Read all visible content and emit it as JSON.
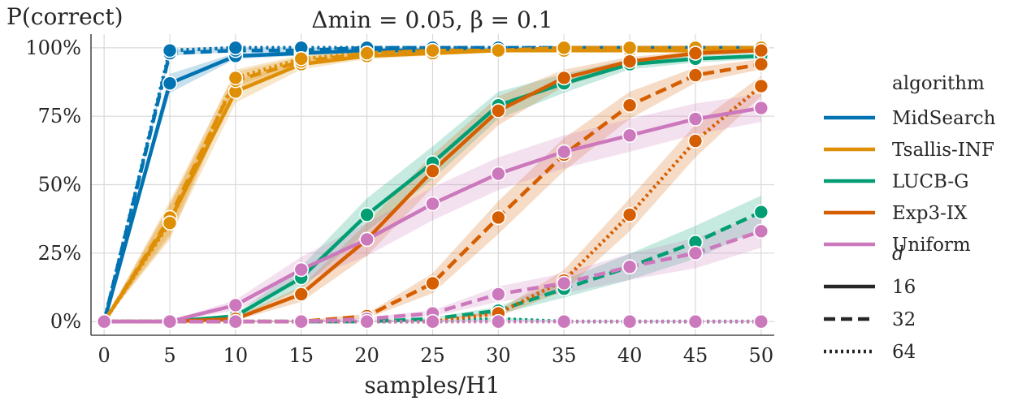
{
  "chart_data": {
    "type": "line",
    "title": "Δmin = 0.05, β = 0.1",
    "xlabel": "samples/H1",
    "ylabel": "P(correct)",
    "xlim": [
      -1,
      51
    ],
    "ylim": [
      -0.05,
      1.05
    ],
    "x": [
      0,
      5,
      10,
      15,
      20,
      25,
      30,
      35,
      40,
      45,
      50
    ],
    "x_ticks": [
      "0",
      "5",
      "10",
      "15",
      "20",
      "25",
      "30",
      "35",
      "40",
      "45",
      "50"
    ],
    "y_ticks": [
      "0%",
      "25%",
      "50%",
      "75%",
      "100%"
    ],
    "grid": true,
    "legend_position": "right",
    "legend_title_algorithm": "algorithm",
    "legend_title_d": "d",
    "algorithms": [
      {
        "name": "MidSearch",
        "color": "#0173b2"
      },
      {
        "name": "Tsallis-INF",
        "color": "#de8f05"
      },
      {
        "name": "LUCB-G",
        "color": "#029e73"
      },
      {
        "name": "Exp3-IX",
        "color": "#d55e00"
      },
      {
        "name": "Uniform",
        "color": "#cc78bc"
      }
    ],
    "d_values": [
      {
        "label": "16",
        "dash": "solid"
      },
      {
        "label": "32",
        "dash": "dashed"
      },
      {
        "label": "64",
        "dash": "dotted"
      }
    ],
    "series": [
      {
        "algorithm": "MidSearch",
        "d": "16",
        "values": [
          0,
          0.87,
          0.97,
          0.98,
          0.99,
          0.99,
          0.99,
          1.0,
          1.0,
          1.0,
          1.0
        ]
      },
      {
        "algorithm": "MidSearch",
        "d": "32",
        "values": [
          0,
          0.98,
          0.99,
          0.99,
          1.0,
          1.0,
          1.0,
          1.0,
          1.0,
          1.0,
          1.0
        ]
      },
      {
        "algorithm": "MidSearch",
        "d": "64",
        "values": [
          0,
          0.99,
          1.0,
          1.0,
          1.0,
          1.0,
          1.0,
          1.0,
          1.0,
          1.0,
          1.0
        ]
      },
      {
        "algorithm": "Tsallis-INF",
        "d": "16",
        "values": [
          0,
          0.37,
          0.84,
          0.94,
          0.97,
          0.98,
          0.99,
          0.99,
          0.99,
          0.99,
          0.99
        ]
      },
      {
        "algorithm": "Tsallis-INF",
        "d": "32",
        "values": [
          0,
          0.38,
          0.88,
          0.95,
          0.98,
          0.99,
          0.99,
          1.0,
          1.0,
          1.0,
          1.0
        ]
      },
      {
        "algorithm": "Tsallis-INF",
        "d": "64",
        "values": [
          0,
          0.36,
          0.89,
          0.96,
          0.98,
          0.99,
          0.99,
          1.0,
          1.0,
          1.0,
          1.0
        ]
      },
      {
        "algorithm": "LUCB-G",
        "d": "16",
        "values": [
          0,
          0.0,
          0.02,
          0.16,
          0.39,
          0.58,
          0.79,
          0.87,
          0.94,
          0.96,
          0.97
        ]
      },
      {
        "algorithm": "LUCB-G",
        "d": "32",
        "values": [
          0,
          0.0,
          0.0,
          0.0,
          0.0,
          0.01,
          0.04,
          0.12,
          0.2,
          0.29,
          0.4
        ]
      },
      {
        "algorithm": "LUCB-G",
        "d": "64",
        "values": [
          0,
          0.0,
          0.0,
          0.0,
          0.0,
          0.0,
          0.01,
          0.0,
          0.0,
          0.0,
          0.0
        ]
      },
      {
        "algorithm": "Exp3-IX",
        "d": "16",
        "values": [
          0,
          0.0,
          0.01,
          0.1,
          0.3,
          0.55,
          0.77,
          0.89,
          0.95,
          0.98,
          0.99
        ]
      },
      {
        "algorithm": "Exp3-IX",
        "d": "32",
        "values": [
          0,
          0.0,
          0.0,
          0.0,
          0.02,
          0.14,
          0.38,
          0.61,
          0.79,
          0.9,
          0.94
        ]
      },
      {
        "algorithm": "Exp3-IX",
        "d": "64",
        "values": [
          0,
          0.0,
          0.0,
          0.0,
          0.0,
          0.0,
          0.03,
          0.15,
          0.39,
          0.66,
          0.86
        ]
      },
      {
        "algorithm": "Uniform",
        "d": "16",
        "values": [
          0,
          0.0,
          0.06,
          0.19,
          0.3,
          0.43,
          0.54,
          0.62,
          0.68,
          0.74,
          0.78
        ]
      },
      {
        "algorithm": "Uniform",
        "d": "32",
        "values": [
          0,
          0.0,
          0.0,
          0.0,
          0.01,
          0.03,
          0.1,
          0.14,
          0.2,
          0.25,
          0.33
        ]
      },
      {
        "algorithm": "Uniform",
        "d": "64",
        "values": [
          0,
          0.0,
          0.0,
          0.0,
          0.0,
          0.0,
          0.0,
          0.0,
          0.0,
          0.0,
          0.0
        ]
      }
    ]
  }
}
